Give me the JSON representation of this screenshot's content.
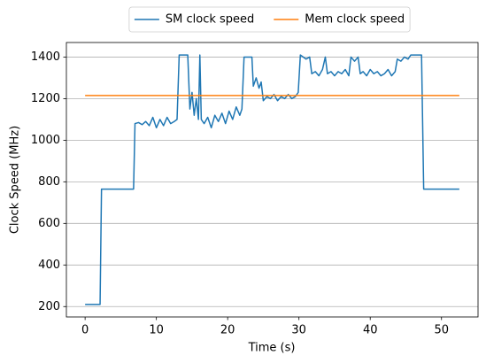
{
  "chart_data": {
    "type": "line",
    "xlabel": "Time (s)",
    "ylabel": "Clock Speed (MHz)",
    "xlim": [
      -2.625,
      55.125
    ],
    "ylim": [
      150,
      1470
    ],
    "xticks": [
      0,
      10,
      20,
      30,
      40,
      50
    ],
    "yticks": [
      200,
      400,
      600,
      800,
      1000,
      1200,
      1400
    ],
    "grid": "y",
    "legend": "upper center",
    "series": [
      {
        "name": "SM clock speed",
        "color": "#1f77b4",
        "x": [
          0,
          2.1,
          2.3,
          6.8,
          7,
          7.5,
          8,
          8.5,
          9,
          9.5,
          10,
          10.5,
          11,
          11.5,
          12,
          12.5,
          12.9,
          13.2,
          14.4,
          14.7,
          15.0,
          15.3,
          15.6,
          15.9,
          16.1,
          16.3,
          16.7,
          17.2,
          17.7,
          18.2,
          18.7,
          19.2,
          19.7,
          20.2,
          20.7,
          21.2,
          21.7,
          22.0,
          22.3,
          23.4,
          23.6,
          24.0,
          24.4,
          24.7,
          25.0,
          25.5,
          26,
          26.5,
          27,
          27.5,
          28,
          28.5,
          29,
          29.5,
          29.9,
          30.2,
          31.0,
          31.5,
          31.8,
          32.3,
          32.8,
          33.3,
          33.7,
          34.0,
          34.5,
          35,
          35.5,
          36,
          36.5,
          37,
          37.3,
          37.8,
          38.3,
          38.6,
          39,
          39.5,
          40,
          40.5,
          41,
          41.5,
          42,
          42.5,
          43,
          43.5,
          43.8,
          44.3,
          44.8,
          45.3,
          45.7,
          46.5,
          47.2,
          47.5,
          52.5
        ],
        "values": [
          210,
          210,
          765,
          765,
          1080,
          1085,
          1075,
          1090,
          1070,
          1110,
          1060,
          1100,
          1070,
          1110,
          1080,
          1090,
          1100,
          1410,
          1410,
          1150,
          1230,
          1120,
          1200,
          1100,
          1410,
          1100,
          1080,
          1110,
          1060,
          1120,
          1090,
          1130,
          1080,
          1140,
          1100,
          1160,
          1120,
          1150,
          1400,
          1400,
          1260,
          1300,
          1250,
          1280,
          1190,
          1210,
          1200,
          1220,
          1190,
          1210,
          1200,
          1220,
          1200,
          1210,
          1230,
          1410,
          1390,
          1400,
          1320,
          1330,
          1310,
          1340,
          1400,
          1320,
          1330,
          1310,
          1330,
          1320,
          1340,
          1310,
          1400,
          1380,
          1400,
          1320,
          1330,
          1310,
          1340,
          1320,
          1330,
          1310,
          1320,
          1340,
          1310,
          1330,
          1390,
          1380,
          1400,
          1390,
          1410,
          1410,
          1410,
          765,
          765
        ]
      },
      {
        "name": "Mem clock speed",
        "color": "#ff7f0e",
        "x": [
          0,
          52.5
        ],
        "values": [
          1215,
          1215
        ]
      }
    ]
  }
}
